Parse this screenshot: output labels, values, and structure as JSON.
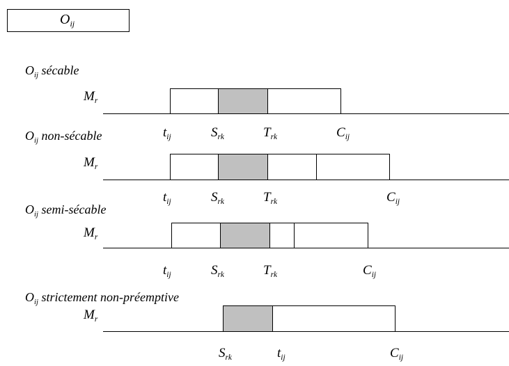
{
  "legend": {
    "label_main": "O",
    "label_sub": "ij"
  },
  "machine": {
    "main": "M",
    "sub": "r"
  },
  "times": {
    "t": {
      "main": "t",
      "sub": "ij"
    },
    "S": {
      "main": "S",
      "sub": "rk"
    },
    "T": {
      "main": "T",
      "sub": "rk"
    },
    "C": {
      "main": "C",
      "sub": "ij"
    }
  },
  "rows": [
    {
      "title_main": "O",
      "title_sub": "ij",
      "title_rest": " sécable"
    },
    {
      "title_main": "O",
      "title_sub": "ij",
      "title_rest": " non-sécable"
    },
    {
      "title_main": "O",
      "title_sub": "ij",
      "title_rest": " semi-sécable"
    },
    {
      "title_main": "O",
      "title_sub": "ij",
      "title_rest": " strictement non-préemptive"
    }
  ]
}
